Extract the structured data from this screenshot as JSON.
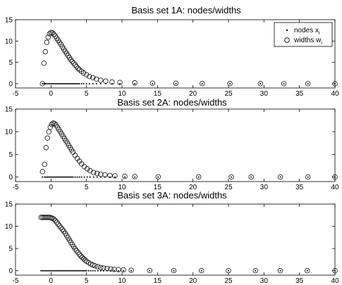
{
  "legend": {
    "nodes_label": "nodes x",
    "nodes_sub": "i",
    "widths_label": "widths w",
    "widths_sub": "i"
  },
  "chart_data": [
    {
      "type": "scatter",
      "title": "Basis set 1A: nodes/widths",
      "xlim": [
        -5,
        40
      ],
      "ylim": [
        -1,
        15
      ],
      "xticks": [
        -5,
        0,
        5,
        10,
        15,
        20,
        25,
        30,
        35,
        40
      ],
      "yticks": [
        0,
        5,
        10,
        15
      ],
      "legend_position": "top-right",
      "series": [
        {
          "name": "nodes x_i",
          "marker": "dot",
          "x": [
            -1.2,
            -1.0,
            -0.8,
            -0.6,
            -0.4,
            -0.2,
            0.0,
            0.2,
            0.4,
            0.6,
            0.8,
            1.0,
            1.2,
            1.4,
            1.6,
            1.8,
            2.0,
            2.2,
            2.4,
            2.6,
            2.8,
            3.0,
            3.2,
            3.4,
            3.6,
            3.8,
            4.0,
            4.3,
            4.6,
            5.0,
            5.4,
            5.9,
            6.4,
            7.0,
            7.7,
            8.6,
            9.7,
            11.8,
            14.3,
            17.6,
            21.3,
            25.2,
            29.5,
            32.8,
            36.2,
            40.0
          ],
          "y": [
            0,
            0,
            0,
            0,
            0,
            0,
            0,
            0,
            0,
            0,
            0,
            0,
            0,
            0,
            0,
            0,
            0,
            0,
            0,
            0,
            0,
            0,
            0,
            0,
            0,
            0,
            0,
            0,
            0,
            0,
            0,
            0,
            0,
            0,
            0,
            0,
            0,
            0,
            0,
            0,
            0,
            0,
            0,
            0,
            0,
            0
          ]
        },
        {
          "name": "widths w_i",
          "marker": "open-circle",
          "x": [
            -1.2,
            -1.0,
            -0.8,
            -0.6,
            -0.4,
            -0.2,
            0.0,
            0.2,
            0.4,
            0.6,
            0.8,
            1.0,
            1.2,
            1.4,
            1.6,
            1.8,
            2.0,
            2.2,
            2.4,
            2.6,
            2.8,
            3.0,
            3.2,
            3.4,
            3.6,
            3.8,
            4.0,
            4.3,
            4.6,
            5.0,
            5.4,
            5.9,
            6.4,
            7.0,
            7.7,
            8.6,
            9.7,
            11.8,
            14.3,
            17.6,
            21.3,
            25.2,
            29.5,
            32.8,
            36.2,
            40.0
          ],
          "y": [
            0.0,
            4.8,
            7.5,
            9.7,
            10.9,
            11.7,
            12.0,
            11.9,
            11.6,
            11.2,
            10.7,
            10.2,
            9.7,
            9.2,
            8.6,
            8.1,
            7.6,
            7.1,
            6.6,
            6.1,
            5.6,
            5.2,
            4.8,
            4.4,
            4.0,
            3.6,
            3.3,
            2.9,
            2.5,
            2.1,
            1.7,
            1.4,
            1.1,
            0.8,
            0.6,
            0.4,
            0.3,
            0.2,
            0.1,
            0.1,
            0.05,
            0.03,
            0.02,
            0.01,
            0.01,
            0.0
          ]
        }
      ]
    },
    {
      "type": "scatter",
      "title": "Basis set 2A: nodes/widths",
      "xlim": [
        -5,
        40
      ],
      "ylim": [
        -1,
        15
      ],
      "xticks": [
        -5,
        0,
        5,
        10,
        15,
        20,
        25,
        30,
        35,
        40
      ],
      "yticks": [
        0,
        5,
        10,
        15
      ],
      "series": [
        {
          "name": "nodes x_i",
          "marker": "dot",
          "x": [
            -1.2,
            -0.9,
            -0.7,
            -0.5,
            -0.3,
            -0.1,
            0.1,
            0.3,
            0.5,
            0.7,
            0.9,
            1.1,
            1.3,
            1.5,
            1.7,
            1.9,
            2.1,
            2.3,
            2.5,
            2.7,
            2.9,
            3.1,
            3.4,
            3.7,
            4.0,
            4.3,
            4.7,
            5.1,
            5.5,
            6.0,
            6.5,
            7.0,
            7.6,
            8.3,
            9.0,
            10.4,
            11.8,
            15.1,
            20.8,
            25.4,
            28.2,
            32.3,
            36.2,
            40.0
          ],
          "y": [
            0,
            0,
            0,
            0,
            0,
            0,
            0,
            0,
            0,
            0,
            0,
            0,
            0,
            0,
            0,
            0,
            0,
            0,
            0,
            0,
            0,
            0,
            0,
            0,
            0,
            0,
            0,
            0,
            0,
            0,
            0,
            0,
            0,
            0,
            0,
            0,
            0,
            0,
            0,
            0,
            0,
            0,
            0,
            0
          ]
        },
        {
          "name": "widths w_i",
          "marker": "open-circle",
          "x": [
            -1.2,
            -0.9,
            -0.7,
            -0.5,
            -0.3,
            -0.1,
            0.1,
            0.3,
            0.5,
            0.7,
            0.9,
            1.1,
            1.3,
            1.5,
            1.7,
            1.9,
            2.1,
            2.3,
            2.5,
            2.7,
            2.9,
            3.1,
            3.4,
            3.7,
            4.0,
            4.3,
            4.7,
            5.1,
            5.5,
            6.0,
            6.5,
            7.0,
            7.6,
            8.3,
            9.0,
            10.4,
            11.8,
            15.1,
            20.8,
            25.4,
            28.2,
            32.3,
            36.2,
            40.0
          ],
          "y": [
            1.2,
            2.8,
            6.5,
            8.6,
            10.0,
            11.0,
            11.6,
            11.9,
            11.8,
            11.5,
            11.0,
            10.5,
            10.0,
            9.5,
            9.0,
            8.5,
            8.0,
            7.5,
            7.0,
            6.5,
            6.0,
            5.5,
            4.8,
            4.1,
            3.5,
            2.9,
            2.3,
            1.8,
            1.4,
            1.0,
            0.8,
            0.6,
            0.5,
            0.35,
            0.25,
            0.15,
            0.1,
            0.05,
            0.03,
            0.02,
            0.01,
            0.01,
            0.0,
            0.0
          ]
        }
      ]
    },
    {
      "type": "scatter",
      "title": "Basis set 3A: nodes/widths",
      "xlim": [
        -5,
        40
      ],
      "ylim": [
        -1,
        15
      ],
      "xticks": [
        -5,
        0,
        5,
        10,
        15,
        20,
        25,
        30,
        35,
        40
      ],
      "yticks": [
        0,
        5,
        10,
        15
      ],
      "series": [
        {
          "name": "nodes x_i",
          "marker": "dot",
          "x": [
            -1.4,
            -1.2,
            -1.0,
            -0.8,
            -0.6,
            -0.4,
            -0.2,
            0.0,
            0.2,
            0.4,
            0.6,
            0.8,
            1.0,
            1.2,
            1.4,
            1.6,
            1.8,
            2.0,
            2.2,
            2.4,
            2.6,
            2.8,
            3.0,
            3.2,
            3.4,
            3.6,
            3.8,
            4.0,
            4.2,
            4.4,
            4.6,
            4.8,
            5.0,
            5.3,
            5.6,
            5.9,
            6.2,
            6.6,
            7.0,
            7.4,
            7.9,
            8.4,
            8.9,
            9.5,
            10.2,
            11.3,
            13.9,
            17.3,
            21.2,
            25.0,
            28.8,
            32.3,
            36.1,
            40.0
          ],
          "y": [
            0,
            0,
            0,
            0,
            0,
            0,
            0,
            0,
            0,
            0,
            0,
            0,
            0,
            0,
            0,
            0,
            0,
            0,
            0,
            0,
            0,
            0,
            0,
            0,
            0,
            0,
            0,
            0,
            0,
            0,
            0,
            0,
            0,
            0,
            0,
            0,
            0,
            0,
            0,
            0,
            0,
            0,
            0,
            0,
            0,
            0,
            0,
            0,
            0,
            0,
            0,
            0,
            0,
            0
          ]
        },
        {
          "name": "widths w_i",
          "marker": "open-circle",
          "x": [
            -1.4,
            -1.2,
            -1.0,
            -0.8,
            -0.6,
            -0.4,
            -0.2,
            0.0,
            0.2,
            0.4,
            0.6,
            0.8,
            1.0,
            1.2,
            1.4,
            1.6,
            1.8,
            2.0,
            2.2,
            2.4,
            2.6,
            2.8,
            3.0,
            3.2,
            3.4,
            3.6,
            3.8,
            4.0,
            4.2,
            4.4,
            4.6,
            4.8,
            5.0,
            5.3,
            5.6,
            5.9,
            6.2,
            6.6,
            7.0,
            7.4,
            7.9,
            8.4,
            8.9,
            9.5,
            10.2,
            11.3,
            13.9,
            17.3,
            21.2,
            25.0,
            28.8,
            32.3,
            36.1,
            40.0
          ],
          "y": [
            12.0,
            12.0,
            12.0,
            12.0,
            12.0,
            12.0,
            12.0,
            11.9,
            11.8,
            11.6,
            11.3,
            10.9,
            10.5,
            10.1,
            9.7,
            9.3,
            8.9,
            8.4,
            7.9,
            7.4,
            6.9,
            6.4,
            5.9,
            5.4,
            4.9,
            4.5,
            4.1,
            3.7,
            3.3,
            3.0,
            2.7,
            2.4,
            2.1,
            1.8,
            1.5,
            1.3,
            1.1,
            0.9,
            0.7,
            0.6,
            0.5,
            0.4,
            0.3,
            0.25,
            0.2,
            0.1,
            0.05,
            0.03,
            0.02,
            0.01,
            0.01,
            0.0,
            0.0,
            0.0
          ]
        }
      ]
    }
  ]
}
